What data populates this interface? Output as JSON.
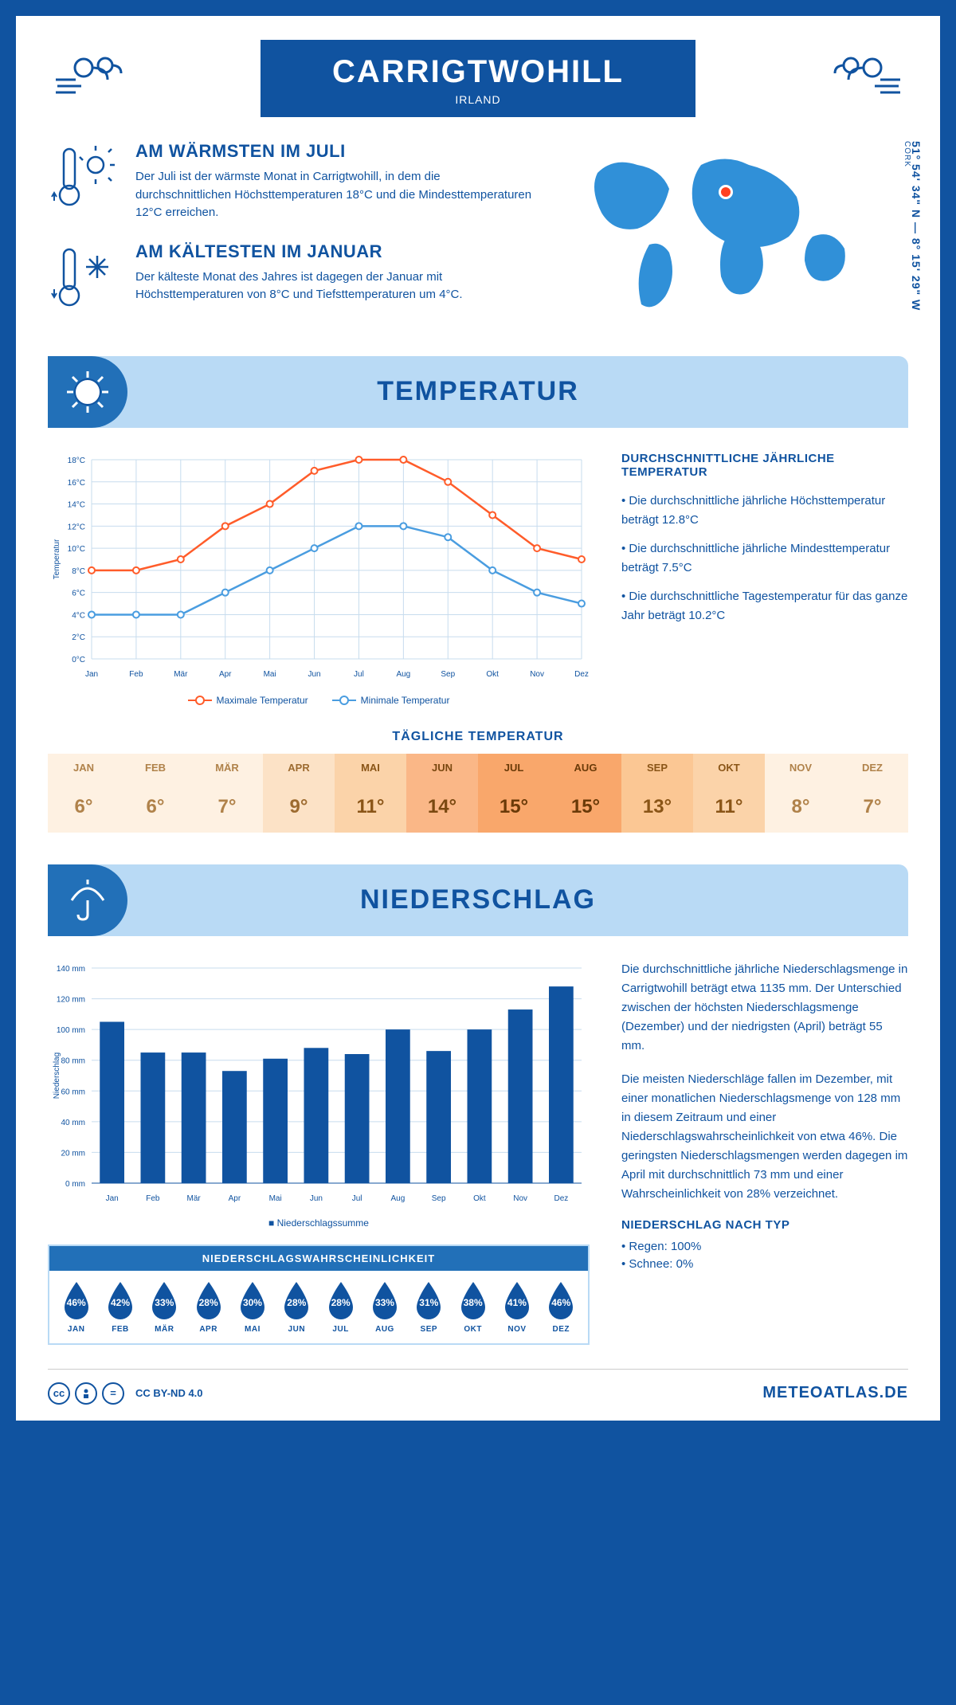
{
  "header": {
    "title": "CARRIGTWOHILL",
    "subtitle": "IRLAND"
  },
  "coords": "51° 54' 34\" N — 8° 15' 29\" W",
  "region": "CORK",
  "info_warm": {
    "title": "AM WÄRMSTEN IM JULI",
    "text": "Der Juli ist der wärmste Monat in Carrigtwohill, in dem die durchschnittlichen Höchsttemperaturen 18°C und die Mindesttemperaturen 12°C erreichen."
  },
  "info_cold": {
    "title": "AM KÄLTESTEN IM JANUAR",
    "text": "Der kälteste Monat des Jahres ist dagegen der Januar mit Höchsttemperaturen von 8°C und Tiefsttemperaturen um 4°C."
  },
  "sections": {
    "temperature": "TEMPERATUR",
    "precipitation": "NIEDERSCHLAG"
  },
  "temp_chart": {
    "type": "line",
    "months": [
      "Jan",
      "Feb",
      "Mär",
      "Apr",
      "Mai",
      "Jun",
      "Jul",
      "Aug",
      "Sep",
      "Okt",
      "Nov",
      "Dez"
    ],
    "max": [
      8,
      8,
      9,
      12,
      14,
      17,
      18,
      18,
      16,
      13,
      10,
      9
    ],
    "min": [
      4,
      4,
      4,
      6,
      8,
      10,
      12,
      12,
      11,
      8,
      6,
      5
    ],
    "ylim": [
      0,
      18
    ],
    "ytick_step": 2,
    "max_color": "#ff5c2a",
    "min_color": "#4a9de0",
    "grid_color": "#c7dcee",
    "label_fontsize": 10,
    "ylabel": "Temperatur",
    "legend_max": "Maximale Temperatur",
    "legend_min": "Minimale Temperatur"
  },
  "temp_side": {
    "title": "DURCHSCHNITTLICHE JÄHRLICHE TEMPERATUR",
    "bullets": [
      "• Die durchschnittliche jährliche Höchsttemperatur beträgt 12.8°C",
      "• Die durchschnittliche jährliche Mindesttemperatur beträgt 7.5°C",
      "• Die durchschnittliche Tagestemperatur für das ganze Jahr beträgt 10.2°C"
    ]
  },
  "daily_temp": {
    "title": "TÄGLICHE TEMPERATUR",
    "months": [
      "JAN",
      "FEB",
      "MÄR",
      "APR",
      "MAI",
      "JUN",
      "JUL",
      "AUG",
      "SEP",
      "OKT",
      "NOV",
      "DEZ"
    ],
    "values": [
      "6°",
      "6°",
      "7°",
      "9°",
      "11°",
      "14°",
      "15°",
      "15°",
      "13°",
      "11°",
      "8°",
      "7°"
    ],
    "bg_colors": [
      "#fef1e2",
      "#fef1e2",
      "#fef1e2",
      "#fce2c6",
      "#fbd3a9",
      "#fab787",
      "#f9a76b",
      "#f9a76b",
      "#fbc794",
      "#fbd3a9",
      "#fef1e2",
      "#fef1e2"
    ],
    "text_colors": [
      "#b0824a",
      "#b0824a",
      "#b0824a",
      "#9d6b30",
      "#8a5517",
      "#7a4810",
      "#6a3a08",
      "#6a3a08",
      "#8a5517",
      "#8a5517",
      "#b0824a",
      "#b0824a"
    ]
  },
  "precip_chart": {
    "type": "bar",
    "months": [
      "Jan",
      "Feb",
      "Mär",
      "Apr",
      "Mai",
      "Jun",
      "Jul",
      "Aug",
      "Sep",
      "Okt",
      "Nov",
      "Dez"
    ],
    "values": [
      105,
      85,
      85,
      73,
      81,
      88,
      84,
      100,
      86,
      100,
      113,
      128
    ],
    "ylim": [
      0,
      140
    ],
    "ytick_step": 20,
    "bar_color": "#1053a0",
    "grid_color": "#c7dcee",
    "ylabel": "Niederschlag",
    "legend": "Niederschlagssumme",
    "label_fontsize": 10
  },
  "precip_text": {
    "p1": "Die durchschnittliche jährliche Niederschlagsmenge in Carrigtwohill beträgt etwa 1135 mm. Der Unterschied zwischen der höchsten Niederschlagsmenge (Dezember) und der niedrigsten (April) beträgt 55 mm.",
    "p2": "Die meisten Niederschläge fallen im Dezember, mit einer monatlichen Niederschlagsmenge von 128 mm in diesem Zeitraum und einer Niederschlagswahrscheinlichkeit von etwa 46%. Die geringsten Niederschlagsmengen werden dagegen im April mit durchschnittlich 73 mm und einer Wahrscheinlichkeit von 28% verzeichnet.",
    "type_title": "NIEDERSCHLAG NACH TYP",
    "type_rain": "• Regen: 100%",
    "type_snow": "• Schnee: 0%"
  },
  "prob": {
    "title": "NIEDERSCHLAGSWAHRSCHEINLICHKEIT",
    "months": [
      "JAN",
      "FEB",
      "MÄR",
      "APR",
      "MAI",
      "JUN",
      "JUL",
      "AUG",
      "SEP",
      "OKT",
      "NOV",
      "DEZ"
    ],
    "values": [
      "46%",
      "42%",
      "33%",
      "28%",
      "30%",
      "28%",
      "28%",
      "33%",
      "31%",
      "38%",
      "41%",
      "46%"
    ],
    "drop_color": "#1053a0"
  },
  "footer": {
    "license": "CC BY-ND 4.0",
    "site": "METEOATLAS.DE"
  }
}
